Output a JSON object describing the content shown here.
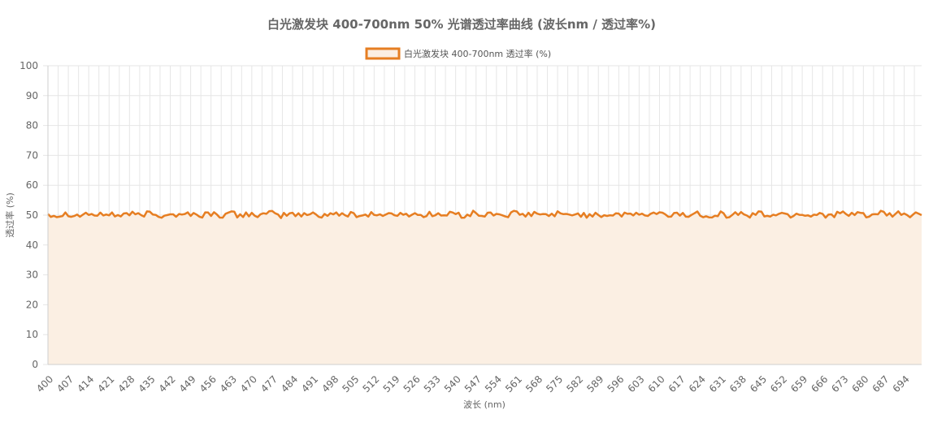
{
  "chart_data": {
    "type": "area",
    "title": "白光激发块 400-700nm 50% 光谱透过率曲线 (波长nm / 透过率%)",
    "xlabel": "波长 (nm)",
    "ylabel": "透过率 (%)",
    "xlim": [
      400,
      700
    ],
    "ylim": [
      0,
      100
    ],
    "y_ticks": [
      "0",
      "10",
      "20",
      "30",
      "40",
      "50",
      "60",
      "70",
      "80",
      "90",
      "100"
    ],
    "x_tick_labels": [
      "400",
      "407",
      "414",
      "421",
      "428",
      "435",
      "442",
      "449",
      "456",
      "463",
      "470",
      "477",
      "484",
      "491",
      "498",
      "505",
      "512",
      "519",
      "526",
      "533",
      "540",
      "547",
      "554",
      "561",
      "568",
      "575",
      "582",
      "589",
      "596",
      "603",
      "610",
      "617",
      "624",
      "631",
      "638",
      "645",
      "652",
      "659",
      "666",
      "673",
      "680",
      "687",
      "694"
    ],
    "grid": true,
    "legend_position": "top-center",
    "series": [
      {
        "name": "白光激发块 400-700nm 透过率 (%)",
        "color": "#e67e22",
        "fill": "#fbefe3",
        "x": [
          400,
          700
        ],
        "values": [
          50.2,
          50.0
        ],
        "values_description_note": ""
      }
    ]
  }
}
